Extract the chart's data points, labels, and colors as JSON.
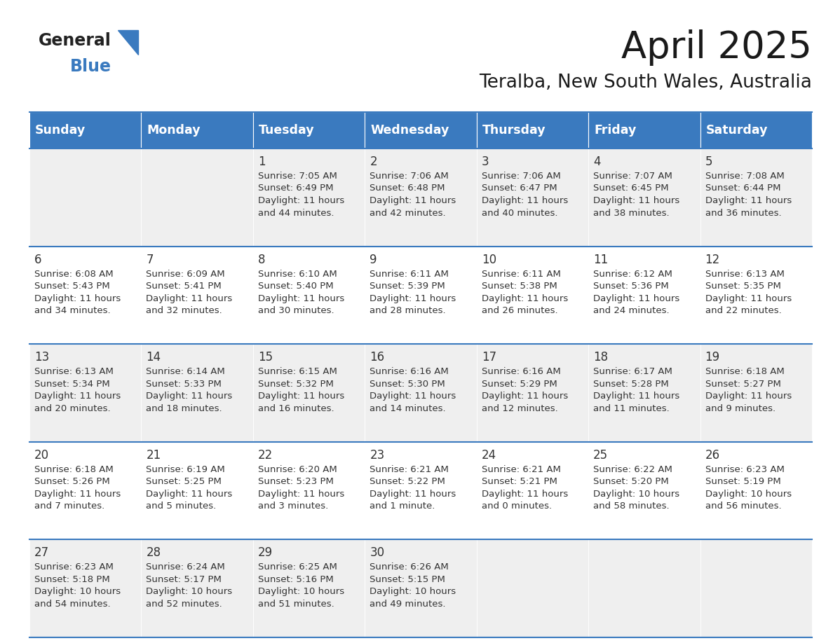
{
  "title": "April 2025",
  "subtitle": "Teralba, New South Wales, Australia",
  "days_of_week": [
    "Sunday",
    "Monday",
    "Tuesday",
    "Wednesday",
    "Thursday",
    "Friday",
    "Saturday"
  ],
  "header_bg": "#3a7abf",
  "header_text": "#ffffff",
  "row_bg_odd": "#efefef",
  "row_bg_even": "#ffffff",
  "border_color": "#3a7abf",
  "text_color": "#333333",
  "title_color": "#1a1a1a",
  "calendar_data": [
    [
      null,
      null,
      {
        "day": 1,
        "sunrise": "7:05 AM",
        "sunset": "6:49 PM",
        "daylight": "11 hours",
        "daylight2": "and 44 minutes."
      },
      {
        "day": 2,
        "sunrise": "7:06 AM",
        "sunset": "6:48 PM",
        "daylight": "11 hours",
        "daylight2": "and 42 minutes."
      },
      {
        "day": 3,
        "sunrise": "7:06 AM",
        "sunset": "6:47 PM",
        "daylight": "11 hours",
        "daylight2": "and 40 minutes."
      },
      {
        "day": 4,
        "sunrise": "7:07 AM",
        "sunset": "6:45 PM",
        "daylight": "11 hours",
        "daylight2": "and 38 minutes."
      },
      {
        "day": 5,
        "sunrise": "7:08 AM",
        "sunset": "6:44 PM",
        "daylight": "11 hours",
        "daylight2": "and 36 minutes."
      }
    ],
    [
      {
        "day": 6,
        "sunrise": "6:08 AM",
        "sunset": "5:43 PM",
        "daylight": "11 hours",
        "daylight2": "and 34 minutes."
      },
      {
        "day": 7,
        "sunrise": "6:09 AM",
        "sunset": "5:41 PM",
        "daylight": "11 hours",
        "daylight2": "and 32 minutes."
      },
      {
        "day": 8,
        "sunrise": "6:10 AM",
        "sunset": "5:40 PM",
        "daylight": "11 hours",
        "daylight2": "and 30 minutes."
      },
      {
        "day": 9,
        "sunrise": "6:11 AM",
        "sunset": "5:39 PM",
        "daylight": "11 hours",
        "daylight2": "and 28 minutes."
      },
      {
        "day": 10,
        "sunrise": "6:11 AM",
        "sunset": "5:38 PM",
        "daylight": "11 hours",
        "daylight2": "and 26 minutes."
      },
      {
        "day": 11,
        "sunrise": "6:12 AM",
        "sunset": "5:36 PM",
        "daylight": "11 hours",
        "daylight2": "and 24 minutes."
      },
      {
        "day": 12,
        "sunrise": "6:13 AM",
        "sunset": "5:35 PM",
        "daylight": "11 hours",
        "daylight2": "and 22 minutes."
      }
    ],
    [
      {
        "day": 13,
        "sunrise": "6:13 AM",
        "sunset": "5:34 PM",
        "daylight": "11 hours",
        "daylight2": "and 20 minutes."
      },
      {
        "day": 14,
        "sunrise": "6:14 AM",
        "sunset": "5:33 PM",
        "daylight": "11 hours",
        "daylight2": "and 18 minutes."
      },
      {
        "day": 15,
        "sunrise": "6:15 AM",
        "sunset": "5:32 PM",
        "daylight": "11 hours",
        "daylight2": "and 16 minutes."
      },
      {
        "day": 16,
        "sunrise": "6:16 AM",
        "sunset": "5:30 PM",
        "daylight": "11 hours",
        "daylight2": "and 14 minutes."
      },
      {
        "day": 17,
        "sunrise": "6:16 AM",
        "sunset": "5:29 PM",
        "daylight": "11 hours",
        "daylight2": "and 12 minutes."
      },
      {
        "day": 18,
        "sunrise": "6:17 AM",
        "sunset": "5:28 PM",
        "daylight": "11 hours",
        "daylight2": "and 11 minutes."
      },
      {
        "day": 19,
        "sunrise": "6:18 AM",
        "sunset": "5:27 PM",
        "daylight": "11 hours",
        "daylight2": "and 9 minutes."
      }
    ],
    [
      {
        "day": 20,
        "sunrise": "6:18 AM",
        "sunset": "5:26 PM",
        "daylight": "11 hours",
        "daylight2": "and 7 minutes."
      },
      {
        "day": 21,
        "sunrise": "6:19 AM",
        "sunset": "5:25 PM",
        "daylight": "11 hours",
        "daylight2": "and 5 minutes."
      },
      {
        "day": 22,
        "sunrise": "6:20 AM",
        "sunset": "5:23 PM",
        "daylight": "11 hours",
        "daylight2": "and 3 minutes."
      },
      {
        "day": 23,
        "sunrise": "6:21 AM",
        "sunset": "5:22 PM",
        "daylight": "11 hours",
        "daylight2": "and 1 minute."
      },
      {
        "day": 24,
        "sunrise": "6:21 AM",
        "sunset": "5:21 PM",
        "daylight": "11 hours",
        "daylight2": "and 0 minutes."
      },
      {
        "day": 25,
        "sunrise": "6:22 AM",
        "sunset": "5:20 PM",
        "daylight": "10 hours",
        "daylight2": "and 58 minutes."
      },
      {
        "day": 26,
        "sunrise": "6:23 AM",
        "sunset": "5:19 PM",
        "daylight": "10 hours",
        "daylight2": "and 56 minutes."
      }
    ],
    [
      {
        "day": 27,
        "sunrise": "6:23 AM",
        "sunset": "5:18 PM",
        "daylight": "10 hours",
        "daylight2": "and 54 minutes."
      },
      {
        "day": 28,
        "sunrise": "6:24 AM",
        "sunset": "5:17 PM",
        "daylight": "10 hours",
        "daylight2": "and 52 minutes."
      },
      {
        "day": 29,
        "sunrise": "6:25 AM",
        "sunset": "5:16 PM",
        "daylight": "10 hours",
        "daylight2": "and 51 minutes."
      },
      {
        "day": 30,
        "sunrise": "6:26 AM",
        "sunset": "5:15 PM",
        "daylight": "10 hours",
        "daylight2": "and 49 minutes."
      },
      null,
      null,
      null
    ]
  ]
}
